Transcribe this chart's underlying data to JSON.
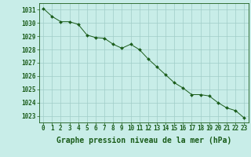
{
  "x": [
    0,
    1,
    2,
    3,
    4,
    5,
    6,
    7,
    8,
    9,
    10,
    11,
    12,
    13,
    14,
    15,
    16,
    17,
    18,
    19,
    20,
    21,
    22,
    23
  ],
  "y": [
    1031.1,
    1030.5,
    1030.1,
    1030.1,
    1029.9,
    1029.1,
    1028.9,
    1028.85,
    1028.4,
    1028.1,
    1028.4,
    1028.0,
    1027.3,
    1026.7,
    1026.1,
    1025.5,
    1025.1,
    1024.6,
    1024.6,
    1024.5,
    1024.0,
    1023.6,
    1023.4,
    1022.85
  ],
  "ylim": [
    1022.5,
    1031.5
  ],
  "xlim": [
    -0.5,
    23.5
  ],
  "yticks": [
    1023,
    1024,
    1025,
    1026,
    1027,
    1028,
    1029,
    1030,
    1031
  ],
  "xticks": [
    0,
    1,
    2,
    3,
    4,
    5,
    6,
    7,
    8,
    9,
    10,
    11,
    12,
    13,
    14,
    15,
    16,
    17,
    18,
    19,
    20,
    21,
    22,
    23
  ],
  "xlabel": "Graphe pression niveau de la mer (hPa)",
  "line_color": "#1a5c1a",
  "marker_color": "#1a5c1a",
  "bg_color": "#c8ede8",
  "grid_color": "#a0ccc8",
  "axis_label_color": "#1a5c1a",
  "tick_label_color": "#1a5c1a",
  "tick_label_fontsize": 5.5,
  "xlabel_fontsize": 7.0,
  "fig_width": 3.2,
  "fig_height": 2.0,
  "dpi": 100
}
